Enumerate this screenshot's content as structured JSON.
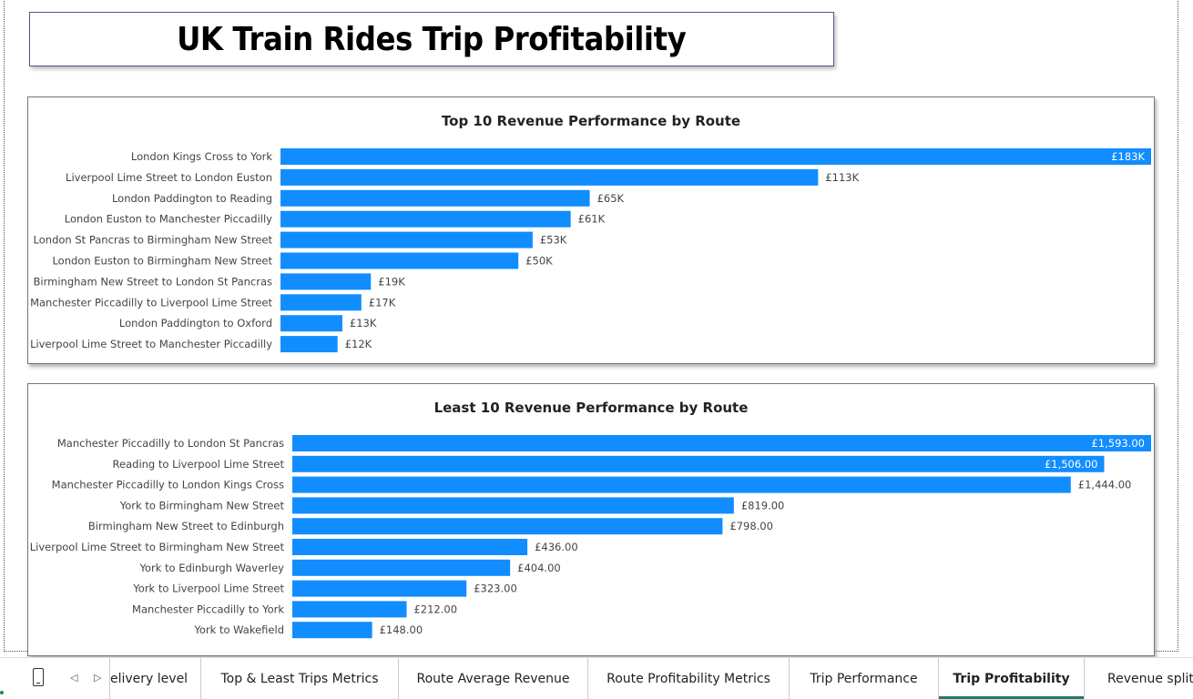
{
  "page_title": "UK Train Rides Trip Profitability",
  "colors": {
    "bar": "#118dff",
    "text": "#444444",
    "active_tab_underline": "#1e7b6e"
  },
  "chart_data": [
    {
      "type": "bar",
      "orientation": "horizontal",
      "title": "Top 10 Revenue Performance by Route",
      "categories": [
        "London Kings Cross to York",
        "Liverpool Lime Street to London Euston",
        "London Paddington to Reading",
        "London Euston to Manchester Piccadilly",
        "London St Pancras to Birmingham New Street",
        "London Euston to Birmingham New Street",
        "Birmingham New Street to London St Pancras",
        "Manchester Piccadilly to Liverpool Lime Street",
        "London Paddington to Oxford",
        "Liverpool Lime Street to Manchester Piccadilly"
      ],
      "values": [
        183000,
        113000,
        65000,
        61000,
        53000,
        50000,
        19000,
        17000,
        13000,
        12000
      ],
      "data_labels": [
        "£183K",
        "£113K",
        "£65K",
        "£61K",
        "£53K",
        "£50K",
        "£19K",
        "£17K",
        "£13K",
        "£12K"
      ],
      "xlim": [
        0,
        183000
      ],
      "grid": false
    },
    {
      "type": "bar",
      "orientation": "horizontal",
      "title": "Least 10 Revenue Performance by Route",
      "categories": [
        "Manchester Piccadilly to London St Pancras",
        "Reading to Liverpool Lime Street",
        "Manchester Piccadilly to London Kings Cross",
        "York to Birmingham New Street",
        "Birmingham New Street to Edinburgh",
        "Liverpool Lime Street to Birmingham New Street",
        "York to Edinburgh Waverley",
        "York to Liverpool Lime Street",
        "Manchester Piccadilly to York",
        "York to Wakefield"
      ],
      "values": [
        1593,
        1506,
        1444,
        819,
        798,
        436,
        404,
        323,
        212,
        148
      ],
      "data_labels": [
        "£1,593.00",
        "£1,506.00",
        "£1,444.00",
        "£819.00",
        "£798.00",
        "£436.00",
        "£404.00",
        "£323.00",
        "£212.00",
        "£148.00"
      ],
      "xlim": [
        0,
        1593
      ],
      "grid": false
    }
  ],
  "tabs": [
    {
      "label": "elivery level",
      "active": false
    },
    {
      "label": "Top & Least Trips Metrics",
      "active": false
    },
    {
      "label": "Route Average Revenue",
      "active": false
    },
    {
      "label": "Route Profitability Metrics",
      "active": false
    },
    {
      "label": "Trip Performance",
      "active": false
    },
    {
      "label": "Trip Profitability",
      "active": true
    },
    {
      "label": "Revenue split",
      "active": false
    }
  ],
  "icons": {
    "mobile": "mobile-layout-icon",
    "prev": "prev-page-icon",
    "next": "next-page-icon"
  },
  "nav": {
    "prev_glyph": "◁",
    "next_glyph": "▷"
  }
}
